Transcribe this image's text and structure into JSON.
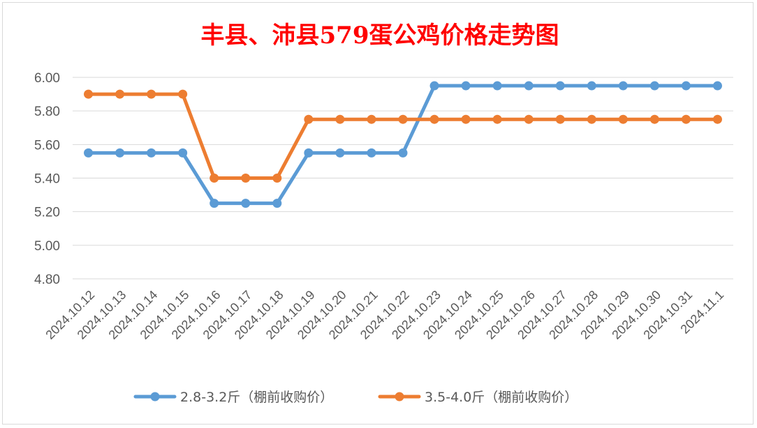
{
  "chart_data": {
    "type": "line",
    "title": "丰县、沛县579蛋公鸡价格走势图",
    "categories": [
      "2024.10.12",
      "2024.10.13",
      "2024.10.14",
      "2024.10.15",
      "2024.10.16",
      "2024.10.17",
      "2024.10.18",
      "2024.10.19",
      "2024.10.20",
      "2024.10.21",
      "2024.10.22",
      "2024.10.23",
      "2024.10.24",
      "2024.10.25",
      "2024.10.26",
      "2024.10.27",
      "2024.10.28",
      "2024.10.29",
      "2024.10.30",
      "2024.10.31",
      "2024.11.1"
    ],
    "series": [
      {
        "name": "2.8-3.2斤（棚前收购价）",
        "color": "#5b9bd5",
        "values": [
          5.55,
          5.55,
          5.55,
          5.55,
          5.25,
          5.25,
          5.25,
          5.55,
          5.55,
          5.55,
          5.55,
          5.95,
          5.95,
          5.95,
          5.95,
          5.95,
          5.95,
          5.95,
          5.95,
          5.95,
          5.95
        ]
      },
      {
        "name": "3.5-4.0斤（棚前收购价）",
        "color": "#ed7d31",
        "values": [
          5.9,
          5.9,
          5.9,
          5.9,
          5.4,
          5.4,
          5.4,
          5.75,
          5.75,
          5.75,
          5.75,
          5.75,
          5.75,
          5.75,
          5.75,
          5.75,
          5.75,
          5.75,
          5.75,
          5.75,
          5.75
        ]
      }
    ],
    "y_ticks": [
      "4.80",
      "5.00",
      "5.20",
      "5.40",
      "5.60",
      "5.80",
      "6.00"
    ],
    "ylim": [
      4.8,
      6.0
    ],
    "grid": true,
    "legend_position": "bottom",
    "title_color": "#ff0000"
  }
}
